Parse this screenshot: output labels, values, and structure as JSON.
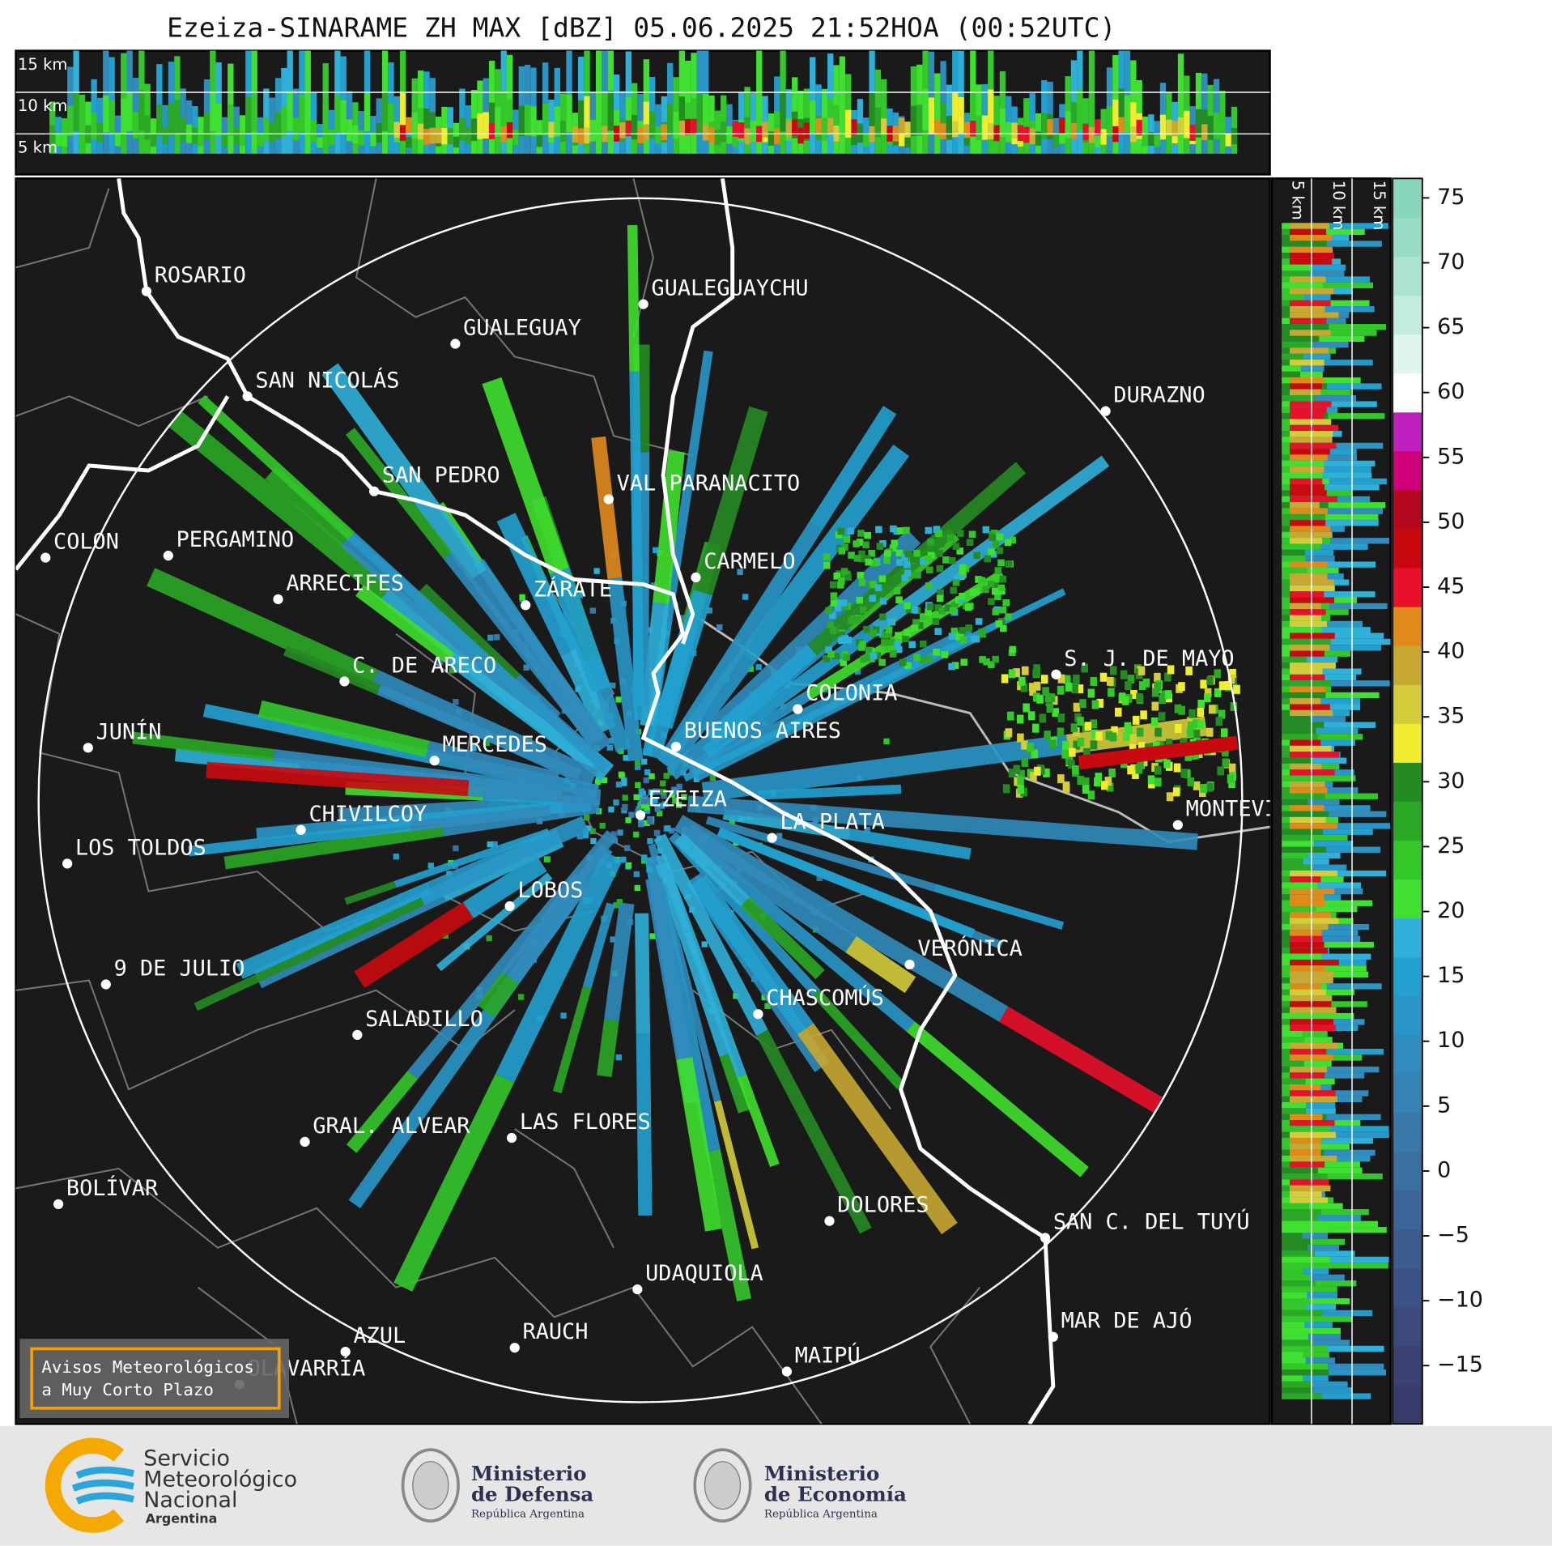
{
  "title": "Ezeiza-SINARAME ZH MAX [dBZ] 05.06.2025 21:52HOA (00:52UTC)",
  "cross_section_top": {
    "labels": [
      "15 km",
      "10 km",
      "5 km"
    ]
  },
  "cross_section_right": {
    "labels": [
      "5 km",
      "10 km",
      "15 km"
    ]
  },
  "cities": [
    "ROSARIO",
    "GUALEGUAYCHU",
    "GUALEGUAY",
    "SAN NICOLÁS",
    "DURAZNO",
    "SAN PEDRO",
    "VAL PARANACITO",
    "COLON",
    "PERGAMINO",
    "CARMELO",
    "ARRECIFES",
    "ZÁRATE",
    "S. J. DE MAYO",
    "C. DE ARECO",
    "COLONIA",
    "JUNÍN",
    "BUENOS AIRES",
    "MERCEDES",
    "EZEIZA",
    "MONTEVIDEO",
    "LA PLATA",
    "CHIVILCOY",
    "LOS TOLDOS",
    "LOBOS",
    "VERÓNICA",
    "9 DE JULIO",
    "CHASCOMÚS",
    "SALADILLO",
    "GRAL. ALVEAR",
    "LAS FLORES",
    "BOLÍVAR",
    "DOLORES",
    "SAN C. DEL TUYÚ",
    "UDAQUIOLA",
    "MAR DE AJÓ",
    "AZUL",
    "RAUCH",
    "OLAVARRÍA",
    "MAIPÚ"
  ],
  "colorbar": {
    "range": [
      -19.5,
      76.5
    ],
    "ticks": [
      75,
      70,
      65,
      60,
      55,
      50,
      45,
      40,
      35,
      30,
      25,
      20,
      15,
      10,
      5,
      0,
      {
        "value": -5,
        "label": "−5"
      },
      {
        "value": -10,
        "label": "−10"
      },
      {
        "value": -15,
        "label": "−15"
      }
    ],
    "colors": [
      "#383a6a",
      "#3a4272",
      "#3b4a7b",
      "#3c5284",
      "#3d5b8d",
      "#3d6496",
      "#3c6e9f",
      "#3a78a9",
      "#3682b2",
      "#318cbc",
      "#2996c6",
      "#22a1d0",
      "#2fb0d8",
      "#3fe02f",
      "#33c72a",
      "#2aa826",
      "#248a22",
      "#f0ec30",
      "#d4cc3a",
      "#c8a832",
      "#e08a1a",
      "#e8102a",
      "#c80a10",
      "#b4081e",
      "#d0007a",
      "#c020c0",
      "#ffffff",
      "#e0f5ee",
      "#c4ecde",
      "#ace4d0",
      "#98dcc4",
      "#88d6bc"
    ]
  },
  "notice": {
    "lines": [
      "Avisos Meteorológicos",
      "a Muy Corto Plazo"
    ]
  },
  "logos": [
    {
      "lines": [
        "Servicio",
        "Meteorológico",
        "Nacional",
        "Argentina"
      ]
    },
    {
      "lines": [
        "Ministerio",
        "de Defensa",
        "República Argentina"
      ]
    },
    {
      "lines": [
        "Ministerio",
        "de Economía",
        "República Argentina"
      ]
    }
  ]
}
